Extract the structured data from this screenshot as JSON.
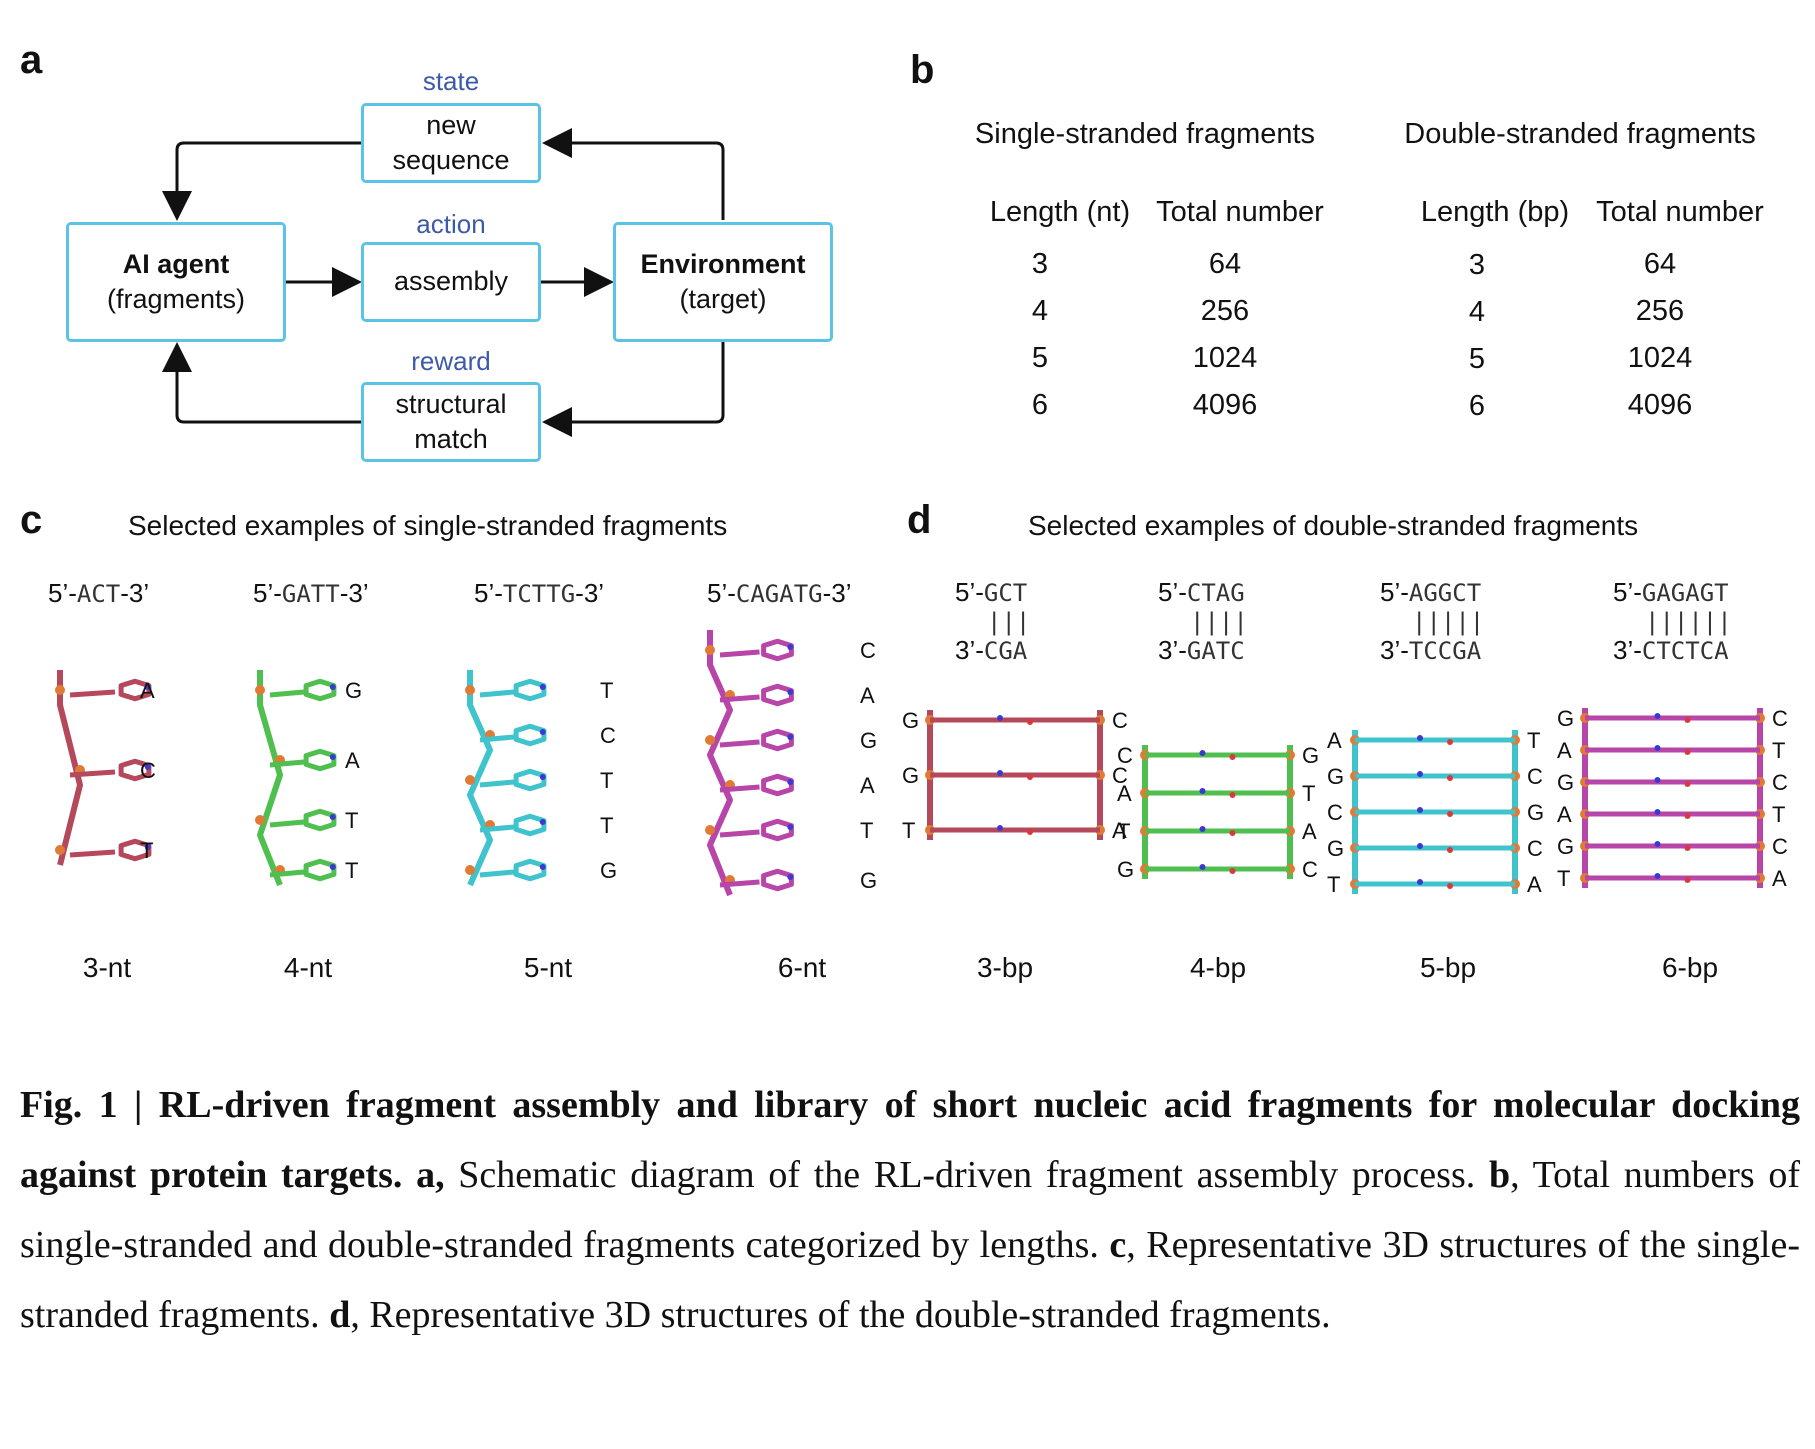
{
  "panel_a": {
    "letter": "a",
    "state_label": "state",
    "action_label": "action",
    "reward_label": "reward",
    "agent_title": "AI agent",
    "agent_sub": "(fragments)",
    "env_title": "Environment",
    "env_sub": "(target)",
    "state_line1": "new",
    "state_line2": "sequence",
    "action_text": "assembly",
    "reward_line1": "structural",
    "reward_line2": "match"
  },
  "panel_b": {
    "letter": "b",
    "ss_title": "Single-stranded fragments",
    "ds_title": "Double-stranded fragments",
    "ss_len_header": "Length (nt)",
    "ss_num_header": "Total number",
    "ds_len_header": "Length (bp)",
    "ds_num_header": "Total number",
    "ss_lengths": [
      "3",
      "4",
      "5",
      "6"
    ],
    "ss_numbers": [
      "64",
      "256",
      "1024",
      "4096"
    ],
    "ds_lengths": [
      "3",
      "4",
      "5",
      "6"
    ],
    "ds_numbers": [
      "64",
      "256",
      "1024",
      "4096"
    ]
  },
  "panel_c": {
    "letter": "c",
    "title": "Selected examples of single-stranded fragments",
    "examples": [
      {
        "prefix": "5’-",
        "seq": "ACT",
        "suffix": "-3’",
        "name": "3-nt",
        "bases": [
          "A",
          "C",
          "T"
        ]
      },
      {
        "prefix": "5’-",
        "seq": "GATT",
        "suffix": "-3’",
        "name": "4-nt",
        "bases": [
          "G",
          "A",
          "T",
          "T"
        ]
      },
      {
        "prefix": "5’-",
        "seq": "TCTTG",
        "suffix": "-3’",
        "name": "5-nt",
        "bases": [
          "T",
          "C",
          "T",
          "T",
          "G"
        ]
      },
      {
        "prefix": "5’-",
        "seq": "CAGATG",
        "suffix": "-3’",
        "name": "6-nt",
        "bases": [
          "C",
          "A",
          "G",
          "A",
          "T",
          "G"
        ]
      }
    ]
  },
  "panel_d": {
    "letter": "d",
    "title": "Selected examples of double-stranded fragments",
    "examples": [
      {
        "top_prefix": "5’-",
        "top": "GCT",
        "bars": "|||",
        "bottom_prefix": "3’-",
        "bottom": "CGA",
        "name": "3-bp",
        "bases": [
          "G",
          "C",
          "G",
          "C",
          "T",
          "A"
        ]
      },
      {
        "top_prefix": "5’-",
        "top": "CTAG",
        "bars": "||||",
        "bottom_prefix": "3’-",
        "bottom": "GATC",
        "name": "4-bp",
        "bases": [
          "C",
          "G",
          "A",
          "T",
          "T",
          "A",
          "G",
          "C"
        ]
      },
      {
        "top_prefix": "5’-",
        "top": "AGGCT",
        "bars": "|||||",
        "bottom_prefix": "3’-",
        "bottom": "TCCGA",
        "name": "5-bp",
        "bases": [
          "A",
          "T",
          "G",
          "C",
          "C",
          "G",
          "G",
          "C",
          "T",
          "A"
        ]
      },
      {
        "top_prefix": "5’-",
        "top": "GAGAGT",
        "bars": "||||||",
        "bottom_prefix": "3’-",
        "bottom": "CTCTCA",
        "name": "6-bp",
        "bases": [
          "G",
          "C",
          "A",
          "T",
          "G",
          "C",
          "A",
          "T",
          "G",
          "C",
          "T",
          "A"
        ]
      }
    ]
  },
  "caption": {
    "fig_label": "Fig. 1 | RL-driven fragment assembly and library of short nucleic acid fragments for molecular docking against protein targets.",
    "a_key": "a,",
    "a_text": "Schematic diagram of the RL-driven fragment assembly process.",
    "b_key": "b",
    "b_text": ", Total numbers of single-stranded and double-stranded fragments categorized by lengths.",
    "c_key": "c",
    "c_text": ", Representative 3D structures of the single-stranded fragments.",
    "d_key": "d",
    "d_text": ", Representative 3D structures of the double-stranded fragments."
  },
  "colors": {
    "box_border": "#5bc3e6",
    "blue_label": "#3d5aa8",
    "mol_3nt": "#b5495b",
    "mol_4nt": "#4fbf4f",
    "mol_5nt": "#3fc3cc",
    "mol_6nt": "#b845a8",
    "phosphate": "#e07a35",
    "nitrogen": "#3a3ad0",
    "oxygen": "#d83a3a"
  }
}
